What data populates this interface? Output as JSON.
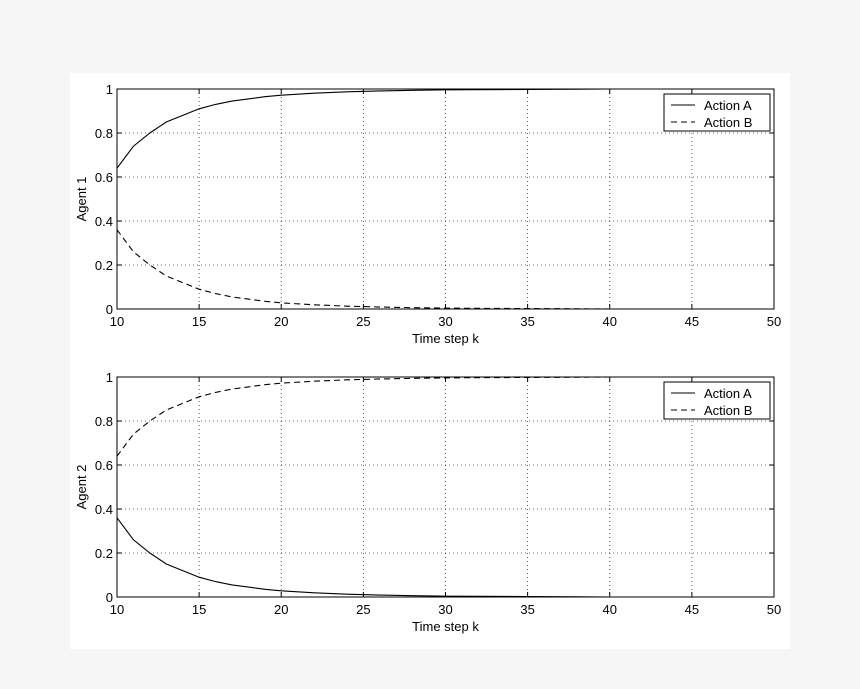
{
  "chart_data": [
    {
      "type": "line",
      "xlabel": "Time step k",
      "ylabel": "Agent 1",
      "xlim": [
        10,
        50
      ],
      "ylim": [
        0,
        1
      ],
      "xticks": [
        "10",
        "15",
        "20",
        "25",
        "30",
        "35",
        "40",
        "45",
        "50"
      ],
      "yticks": [
        "0",
        "0.2",
        "0.4",
        "0.6",
        "0.8",
        "1"
      ],
      "grid": true,
      "legend_position": "top-right",
      "x": [
        10,
        11,
        12,
        13,
        14,
        15,
        16,
        17,
        18,
        19,
        20,
        22,
        24,
        26,
        28,
        30,
        32,
        35,
        38,
        40,
        45,
        50
      ],
      "series": [
        {
          "name": "Action A",
          "style": "solid",
          "values": [
            0.64,
            0.74,
            0.8,
            0.85,
            0.88,
            0.91,
            0.93,
            0.945,
            0.955,
            0.965,
            0.972,
            0.981,
            0.987,
            0.991,
            0.994,
            0.996,
            0.997,
            0.998,
            0.999,
            1.0,
            1.0,
            1.0
          ]
        },
        {
          "name": "Action B",
          "style": "dashed",
          "values": [
            0.36,
            0.26,
            0.2,
            0.15,
            0.12,
            0.09,
            0.07,
            0.055,
            0.045,
            0.035,
            0.028,
            0.019,
            0.013,
            0.009,
            0.006,
            0.004,
            0.003,
            0.002,
            0.001,
            0.0,
            0.0,
            0.0
          ]
        }
      ]
    },
    {
      "type": "line",
      "xlabel": "Time step k",
      "ylabel": "Agent 2",
      "xlim": [
        10,
        50
      ],
      "ylim": [
        0,
        1
      ],
      "xticks": [
        "10",
        "15",
        "20",
        "25",
        "30",
        "35",
        "40",
        "45",
        "50"
      ],
      "yticks": [
        "0",
        "0.2",
        "0.4",
        "0.6",
        "0.8",
        "1"
      ],
      "grid": true,
      "legend_position": "top-right",
      "x": [
        10,
        11,
        12,
        13,
        14,
        15,
        16,
        17,
        18,
        19,
        20,
        22,
        24,
        26,
        28,
        30,
        32,
        35,
        38,
        40,
        45,
        50
      ],
      "series": [
        {
          "name": "Action A",
          "style": "solid",
          "values": [
            0.36,
            0.26,
            0.2,
            0.15,
            0.12,
            0.09,
            0.07,
            0.055,
            0.045,
            0.035,
            0.028,
            0.019,
            0.013,
            0.009,
            0.006,
            0.004,
            0.003,
            0.002,
            0.001,
            0.0,
            0.0,
            0.0
          ]
        },
        {
          "name": "Action B",
          "style": "dashed",
          "values": [
            0.64,
            0.74,
            0.8,
            0.85,
            0.88,
            0.91,
            0.93,
            0.945,
            0.955,
            0.965,
            0.972,
            0.981,
            0.987,
            0.991,
            0.994,
            0.996,
            0.997,
            0.998,
            0.999,
            1.0,
            1.0,
            1.0
          ]
        }
      ]
    }
  ]
}
